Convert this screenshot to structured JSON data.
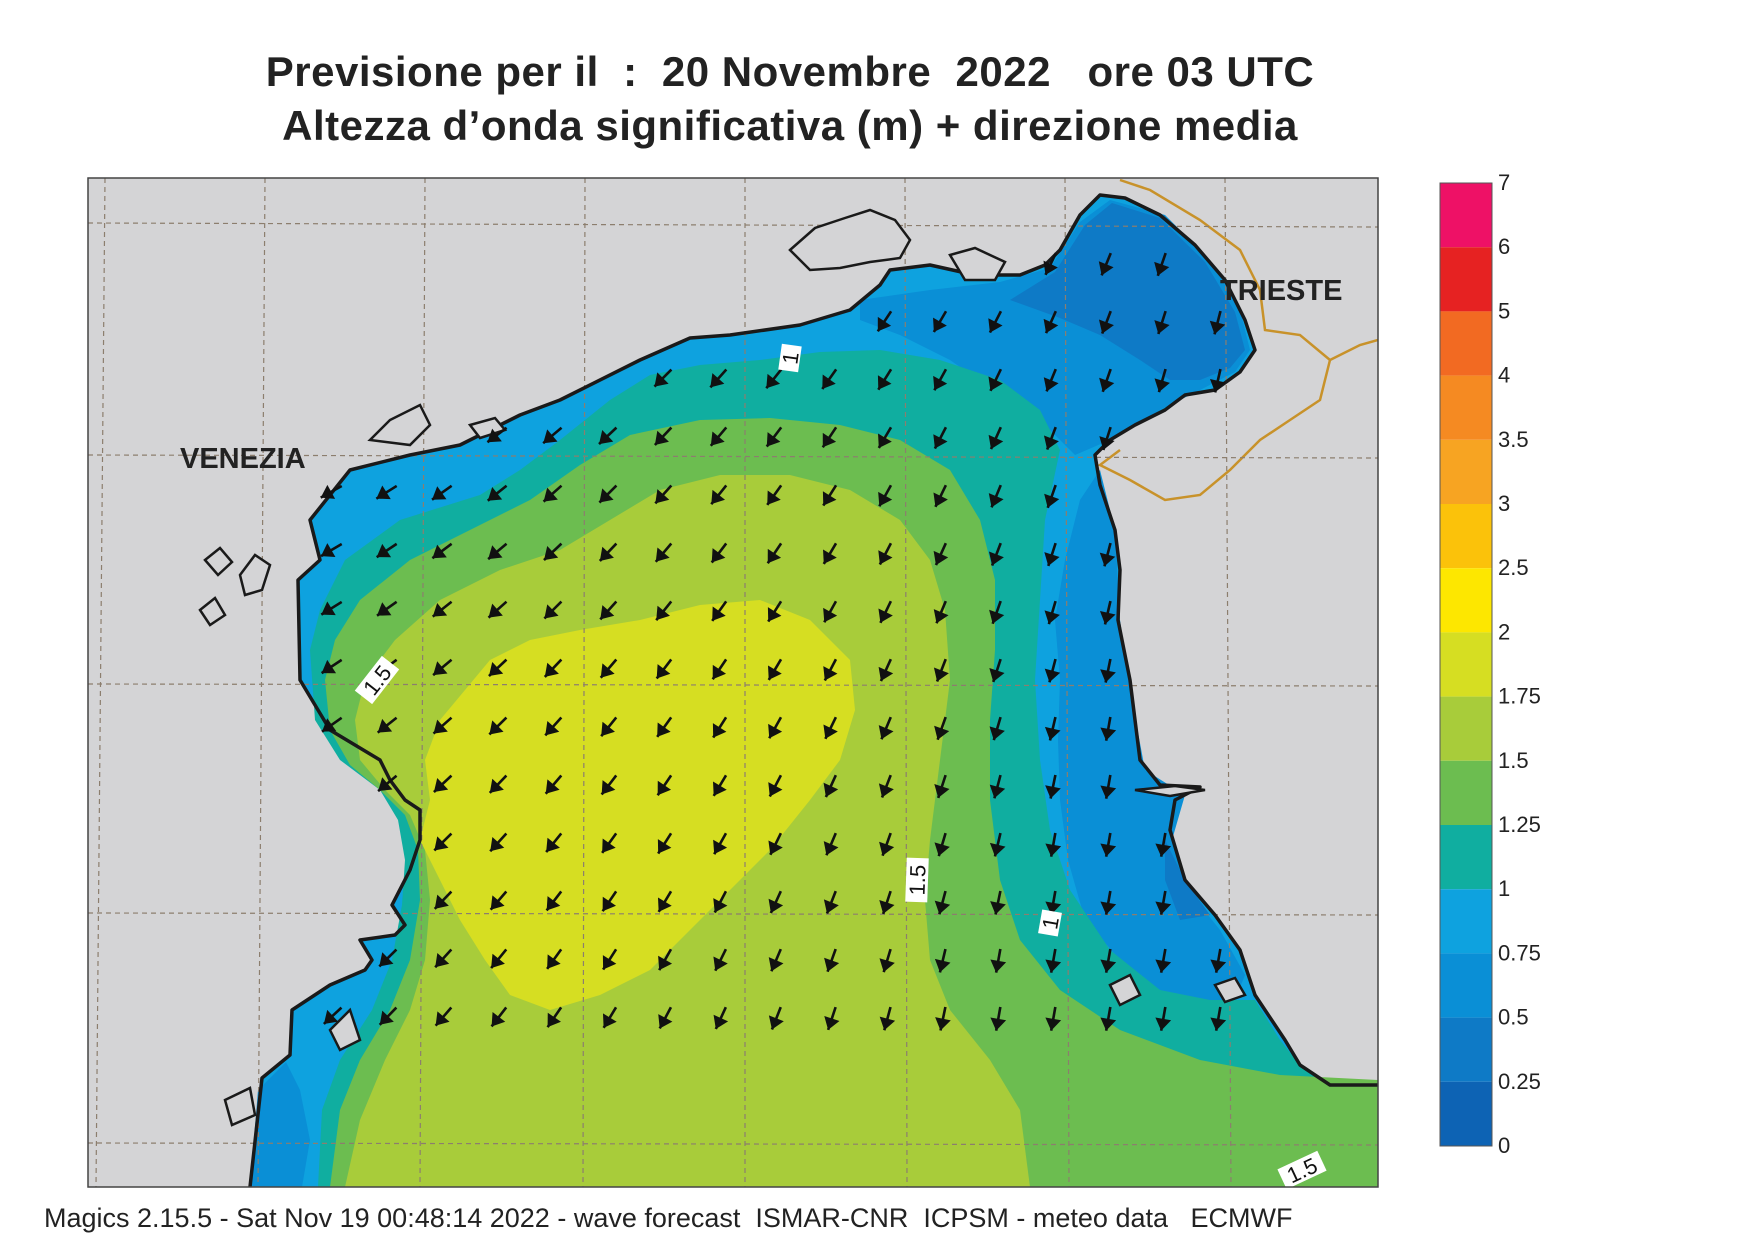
{
  "title_line1": "Previsione per il  :  20 Novembre  2022   ore 03 UTC",
  "title_line2": "Altezza d’onda significativa (m) + direzione media",
  "footer": "Magics 2.15.5 - Sat Nov 19 00:48:14 2022 - wave forecast  ISMAR-CNR  ICPSM - meteo data   ECMWF",
  "places": {
    "venezia": "VENEZIA",
    "trieste": "TRIESTE"
  },
  "contour_labels": [
    "1",
    "1.5",
    "1.5",
    "1",
    "1.5"
  ],
  "legend": {
    "labels": [
      "7",
      "6",
      "5",
      "4",
      "3.5",
      "3",
      "2.5",
      "2",
      "1.75",
      "1.5",
      "1.25",
      "1",
      "0.75",
      "0.5",
      "0.25",
      "0"
    ],
    "colors": [
      "#ee1166",
      "#e62222",
      "#f26a22",
      "#f58a22",
      "#f7a422",
      "#fbc20a",
      "#fde700",
      "#d6de22",
      "#a8cc3a",
      "#6cbd50",
      "#10aea0",
      "#0ea2df",
      "#0a8fd6",
      "#0e7ac6",
      "#0d63b4"
    ]
  },
  "colors": {
    "land": "#d4d4d6",
    "coastline": "#1a1a1a",
    "border": "#c8922a",
    "arrow": "#111111"
  }
}
